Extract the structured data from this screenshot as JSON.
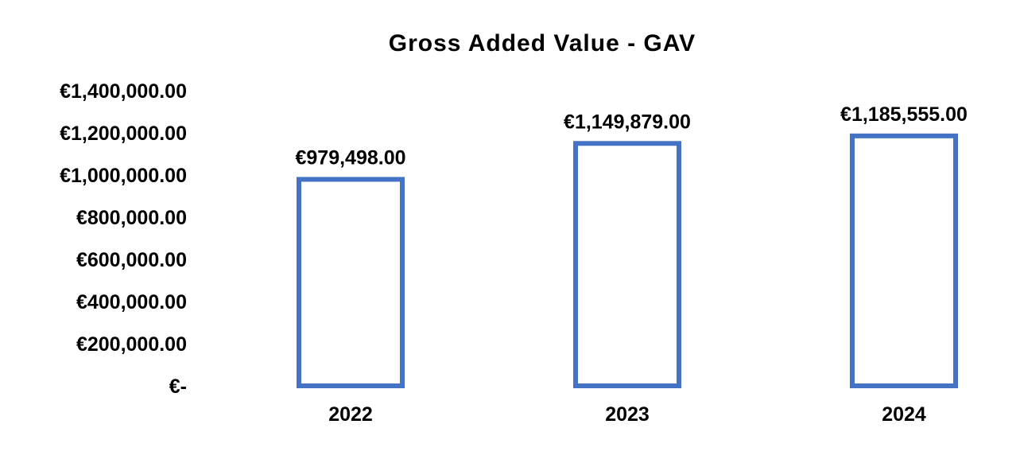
{
  "chart_data": {
    "type": "bar",
    "title": "Gross Added Value - GAV",
    "categories": [
      "2022",
      "2023",
      "2024"
    ],
    "values": [
      979498,
      1149879,
      1185555
    ],
    "data_labels": [
      "€979,498.00",
      "€1,149,879.00",
      "€1,185,555.00"
    ],
    "xlabel": "",
    "ylabel": "",
    "ylim": [
      0,
      1400000
    ],
    "y_ticks": [
      0,
      200000,
      400000,
      600000,
      800000,
      1000000,
      1200000,
      1400000
    ],
    "y_tick_labels": [
      "€-",
      "€200,000.00",
      "€400,000.00",
      "€600,000.00",
      "€800,000.00",
      "€1,000,000.00",
      "€1,200,000.00",
      "€1,400,000.00"
    ],
    "grid": false,
    "legend": "none",
    "bar_style": "outline",
    "bar_color": "#4472C4"
  }
}
